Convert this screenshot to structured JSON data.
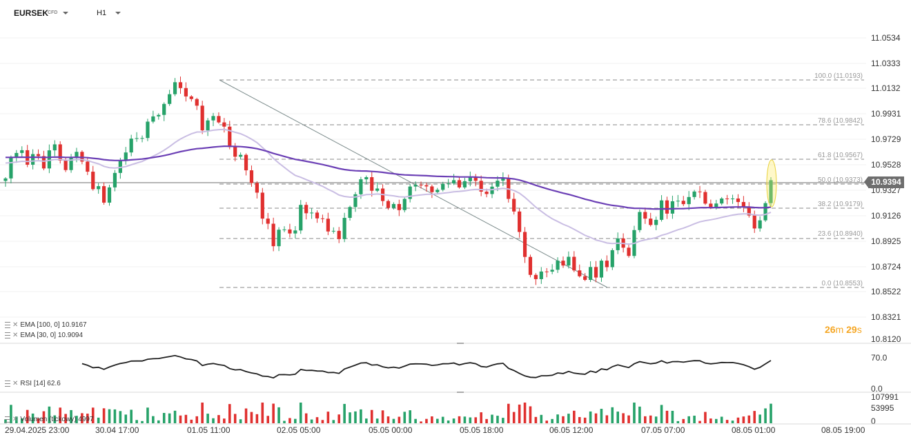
{
  "header": {
    "symbol": "EURSEK",
    "badge": "CFD",
    "timeframe": "H1"
  },
  "price_axis": [
    "11.0534",
    "11.0333",
    "11.0132",
    "10.9931",
    "10.9729",
    "10.9528",
    "10.9327",
    "10.9126",
    "10.8925",
    "10.8724",
    "10.8522",
    "10.8321",
    "10.8120"
  ],
  "current_price": "10.9394",
  "fib_labels": [
    "100.0 (11.0193)",
    "78.6 (10.9842)",
    "61.8 (10.9567)",
    "50.0 (10.9373)",
    "38.2 (10.9179)",
    "23.6 (10.8940)",
    "0.0 (10.8553)"
  ],
  "indicators": {
    "ema100": "EMA  [100,  0]  10.9167",
    "ema30": "EMA  [30,  0]  10.9094",
    "rsi": "RSI  [14]  62.6",
    "volume": "Volumen  (tickowy)  4997"
  },
  "rsi_axis": [
    "70.0",
    "0.0"
  ],
  "volume_axis": [
    "107991",
    "53995",
    "0"
  ],
  "timer": {
    "minutes": "26",
    "m": "m",
    "seconds": "29",
    "s": "s"
  },
  "x_axis": [
    "29.04.2025  23:00",
    "30.04  17:00",
    "01.05  11:00",
    "02.05  05:00",
    "05.05  00:00",
    "05.05  18:00",
    "06.05  12:00",
    "07.05  07:00",
    "08.05  01:00",
    "08.05  19:00"
  ],
  "colors": {
    "up": "#26a269",
    "down": "#e0302f",
    "ema100": "#6b3fb5",
    "ema30": "#c9bde3",
    "timer": "#f5a623"
  },
  "chart_data": {
    "type": "candlestick",
    "symbol": "EURSEK",
    "timeframe": "H1",
    "ylim": [
      10.812,
      11.0534
    ],
    "closes": [
      10.9408,
      10.9573,
      10.9612,
      10.9634,
      10.9518,
      10.9603,
      10.9587,
      10.9488,
      10.9633,
      10.9681,
      10.9551,
      10.9475,
      10.9577,
      10.9621,
      10.9543,
      10.9462,
      10.9322,
      10.9346,
      10.9214,
      10.9336,
      10.9452,
      10.9554,
      10.9616,
      10.9727,
      10.9731,
      10.9732,
      10.9863,
      10.9905,
      10.9917,
      11.0005,
      11.0083,
      11.0179,
      11.0132,
      11.0065,
      11.0044,
      10.9991,
      10.9793,
      10.9873,
      10.9908,
      10.9857,
      10.9823,
      10.9659,
      10.9582,
      10.9597,
      10.9473,
      10.9371,
      10.9294,
      10.9086,
      10.9045,
      10.8865,
      10.8997,
      10.8999,
      10.8967,
      10.8991,
      10.9196,
      10.9129,
      10.9134,
      10.9088,
      10.9085,
      10.8983,
      10.8988,
      10.8922,
      10.9092,
      10.9179,
      10.9281,
      10.9401,
      10.9418,
      10.9309,
      10.9327,
      10.9227,
      10.9172,
      10.9203,
      10.9154,
      10.9244,
      10.9343,
      10.9357,
      10.9354,
      10.9344,
      10.9298,
      10.9317,
      10.9364,
      10.9368,
      10.9394,
      10.9336,
      10.9386,
      10.9416,
      10.9389,
      10.9302,
      10.9283,
      10.9342,
      10.939,
      10.9411,
      10.9244,
      10.9143,
      10.8979,
      10.8779,
      10.8635,
      10.8601,
      10.8662,
      10.8661,
      10.8676,
      10.8749,
      10.871,
      10.878,
      10.8671,
      10.8624,
      10.8595,
      10.8698,
      10.8614,
      10.8749,
      10.8697,
      10.8833,
      10.8927,
      10.8853,
      10.8787,
      10.8994,
      10.9139,
      10.9086,
      10.9035,
      10.9076,
      10.9232,
      10.9126,
      10.9225,
      10.9229,
      10.9202,
      10.9259,
      10.9303,
      10.9299,
      10.9206,
      10.9178,
      10.9207,
      10.9247,
      10.9242,
      10.9247,
      10.9219,
      10.9176,
      10.9111,
      10.9007,
      10.9072,
      10.921,
      10.9394
    ]
  }
}
